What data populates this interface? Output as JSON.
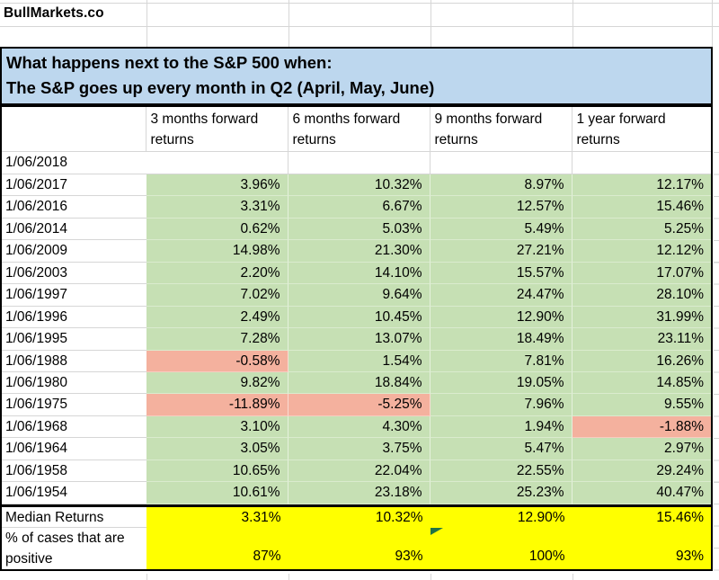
{
  "brand": "BullMarkets.co",
  "title": {
    "line1": "What happens next to the S&P 500 when:",
    "line2": "The S&P goes up every month in Q2 (April, May, June)"
  },
  "table": {
    "headers": [
      "3 months forward returns",
      "6 months forward returns",
      "9 months forward returns",
      "1 year forward returns"
    ],
    "rows": [
      {
        "date": "1/06/2018",
        "values": [
          "",
          "",
          "",
          ""
        ]
      },
      {
        "date": "1/06/2017",
        "values": [
          "3.96%",
          "10.32%",
          "8.97%",
          "12.17%"
        ]
      },
      {
        "date": "1/06/2016",
        "values": [
          "3.31%",
          "6.67%",
          "12.57%",
          "15.46%"
        ]
      },
      {
        "date": "1/06/2014",
        "values": [
          "0.62%",
          "5.03%",
          "5.49%",
          "5.25%"
        ]
      },
      {
        "date": "1/06/2009",
        "values": [
          "14.98%",
          "21.30%",
          "27.21%",
          "12.12%"
        ]
      },
      {
        "date": "1/06/2003",
        "values": [
          "2.20%",
          "14.10%",
          "15.57%",
          "17.07%"
        ]
      },
      {
        "date": "1/06/1997",
        "values": [
          "7.02%",
          "9.64%",
          "24.47%",
          "28.10%"
        ]
      },
      {
        "date": "1/06/1996",
        "values": [
          "2.49%",
          "10.45%",
          "12.90%",
          "31.99%"
        ]
      },
      {
        "date": "1/06/1995",
        "values": [
          "7.28%",
          "13.07%",
          "18.49%",
          "23.11%"
        ]
      },
      {
        "date": "1/06/1988",
        "values": [
          "-0.58%",
          "1.54%",
          "7.81%",
          "16.26%"
        ]
      },
      {
        "date": "1/06/1980",
        "values": [
          "9.82%",
          "18.84%",
          "19.05%",
          "14.85%"
        ]
      },
      {
        "date": "1/06/1975",
        "values": [
          "-11.89%",
          "-5.25%",
          "7.96%",
          "9.55%"
        ]
      },
      {
        "date": "1/06/1968",
        "values": [
          "3.10%",
          "4.30%",
          "1.94%",
          "-1.88%"
        ]
      },
      {
        "date": "1/06/1964",
        "values": [
          "3.05%",
          "3.75%",
          "5.47%",
          "2.97%"
        ]
      },
      {
        "date": "1/06/1958",
        "values": [
          "10.65%",
          "22.04%",
          "22.55%",
          "29.24%"
        ]
      },
      {
        "date": "1/06/1954",
        "values": [
          "10.61%",
          "23.18%",
          "25.23%",
          "40.47%"
        ]
      }
    ],
    "median": {
      "label": "Median Returns",
      "values": [
        "3.31%",
        "10.32%",
        "12.90%",
        "15.46%"
      ]
    },
    "positive": {
      "label": "% of cases that are positive",
      "values": [
        "87%",
        "93%",
        "100%",
        "93%"
      ]
    }
  },
  "colors": {
    "title_bg": "#bdd7ee",
    "positive_cell": "#c6e0b4",
    "negative_cell": "#f4b19e",
    "summary_bg": "#ffff00",
    "error_flag": "#217346"
  }
}
